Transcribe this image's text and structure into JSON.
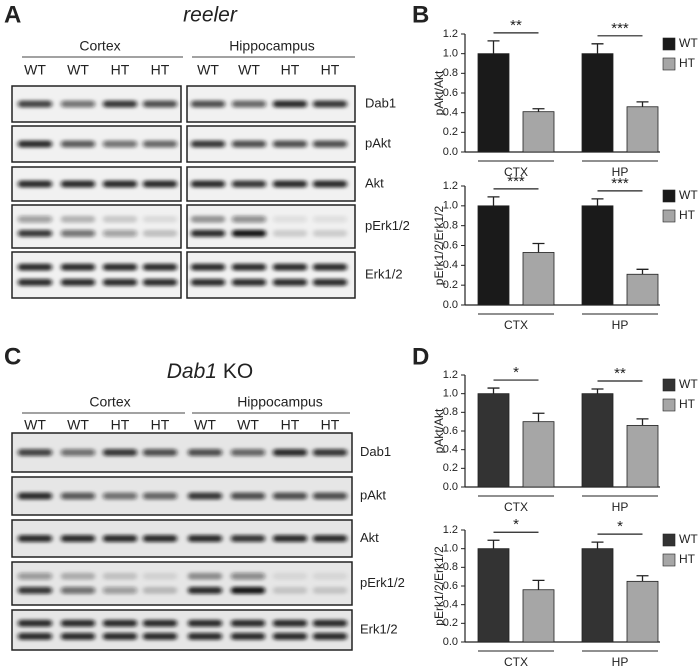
{
  "panel_labels": [
    "A",
    "B",
    "C",
    "D"
  ],
  "blots": [
    {
      "title": "reeler",
      "regions": [
        "Cortex",
        "Hippocampus"
      ],
      "lanes": [
        "WT",
        "WT",
        "HT",
        "HT",
        "WT",
        "WT",
        "HT",
        "HT"
      ],
      "rows": [
        "Dab1",
        "pAkt",
        "Akt",
        "pErk1/2",
        "Erk1/2"
      ]
    },
    {
      "title_italic": "Dab1",
      "title_rest": "KO",
      "regions": [
        "Cortex",
        "Hippocampus"
      ],
      "lanes": [
        "WT",
        "WT",
        "HT",
        "HT",
        "WT",
        "WT",
        "HT",
        "HT"
      ],
      "rows": [
        "Dab1",
        "pAkt",
        "Akt",
        "pErk1/2",
        "Erk1/2"
      ]
    }
  ],
  "chart_data": [
    {
      "type": "bar",
      "ylabel": "pAkt/Akt",
      "categories": [
        "CTX",
        "HP"
      ],
      "series": [
        {
          "name": "WT",
          "color": "#1a1a1a",
          "values": [
            1.0,
            1.0
          ],
          "errors": [
            0.13,
            0.1
          ]
        },
        {
          "name": "HT",
          "color": "#a6a6a6",
          "values": [
            0.41,
            0.46
          ],
          "errors": [
            0.03,
            0.05
          ]
        }
      ],
      "significance": [
        "**",
        "***"
      ],
      "ylim": [
        0,
        1.2
      ],
      "yticks": [
        {
          "value": 0,
          "label": "0.0"
        },
        0.2,
        0.4,
        0.6,
        0.8,
        {
          "value": 1,
          "label": "1.0"
        },
        1.2
      ],
      "legend": "upper right"
    },
    {
      "type": "bar",
      "ylabel": "pErk1/2/Erk1/2",
      "categories": [
        "CTX",
        "HP"
      ],
      "series": [
        {
          "name": "WT",
          "color": "#1a1a1a",
          "values": [
            1.0,
            1.0
          ],
          "errors": [
            0.09,
            0.07
          ]
        },
        {
          "name": "HT",
          "color": "#a6a6a6",
          "values": [
            0.53,
            0.31
          ],
          "errors": [
            0.09,
            0.05
          ]
        }
      ],
      "significance": [
        "***",
        "***"
      ],
      "ylim": [
        0,
        1.2
      ],
      "yticks": [
        {
          "value": 0,
          "label": "0.0"
        },
        0.2,
        0.4,
        0.6,
        0.8,
        {
          "value": 1,
          "label": "1.0"
        },
        1.2
      ],
      "legend": "upper right"
    },
    {
      "type": "bar",
      "ylabel": "pAkt/Akt",
      "categories": [
        "CTX",
        "HP"
      ],
      "series": [
        {
          "name": "WT",
          "color": "#333333",
          "values": [
            1.0,
            1.0
          ],
          "errors": [
            0.06,
            0.05
          ]
        },
        {
          "name": "HT",
          "color": "#a6a6a6",
          "values": [
            0.7,
            0.66
          ],
          "errors": [
            0.09,
            0.07
          ]
        }
      ],
      "significance": [
        "*",
        "**"
      ],
      "ylim": [
        0,
        1.2
      ],
      "yticks": [
        {
          "value": 0,
          "label": "0.0"
        },
        0.2,
        0.4,
        0.6,
        0.8,
        {
          "value": 1,
          "label": "1.0"
        },
        1.2
      ],
      "legend": "upper right"
    },
    {
      "type": "bar",
      "ylabel": "pErk1/2/Erk1/2",
      "categories": [
        "CTX",
        "HP"
      ],
      "series": [
        {
          "name": "WT",
          "color": "#333333",
          "values": [
            1.0,
            1.0
          ],
          "errors": [
            0.09,
            0.07
          ]
        },
        {
          "name": "HT",
          "color": "#a6a6a6",
          "values": [
            0.56,
            0.65
          ],
          "errors": [
            0.1,
            0.06
          ]
        }
      ],
      "significance": [
        "*",
        "*"
      ],
      "ylim": [
        0,
        1.2
      ],
      "yticks": [
        {
          "value": 0,
          "label": "0.0"
        },
        0.2,
        0.4,
        0.6,
        0.8,
        {
          "value": 1,
          "label": "1.0"
        },
        1.2
      ],
      "legend": "upper right"
    }
  ]
}
